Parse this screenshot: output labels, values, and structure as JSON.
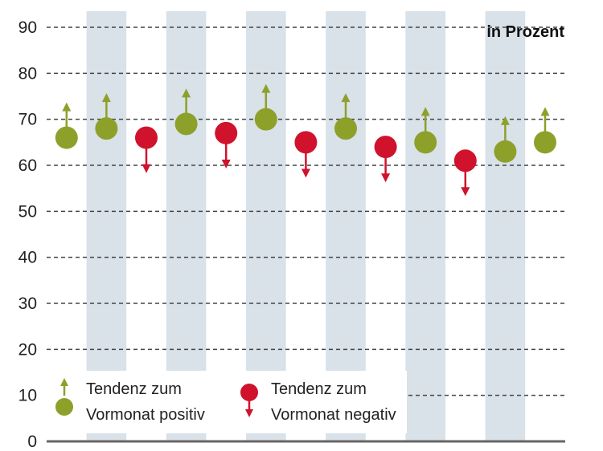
{
  "chart_data": {
    "type": "scatter",
    "unit_label": "in Prozent",
    "ylim": [
      0,
      90
    ],
    "y_ticks": [
      0,
      10,
      20,
      30,
      40,
      50,
      60,
      70,
      80,
      90
    ],
    "grid": true,
    "values": [
      66,
      68,
      66,
      69,
      67,
      70,
      65,
      68,
      64,
      65,
      61,
      63,
      65
    ],
    "tendency": [
      "positive",
      "positive",
      "negative",
      "positive",
      "negative",
      "positive",
      "negative",
      "positive",
      "negative",
      "positive",
      "negative",
      "positive",
      "positive"
    ],
    "colors": {
      "positive": "#8da12a",
      "negative": "#d0122c",
      "band": "#d9e1e9",
      "grid": "#444444",
      "axis": "#666666"
    },
    "legend": {
      "positive": {
        "line1": "Tendenz zum",
        "line2": "Vormonat positiv"
      },
      "negative": {
        "line1": "Tendenz zum",
        "line2": "Vormonat negativ"
      }
    }
  }
}
